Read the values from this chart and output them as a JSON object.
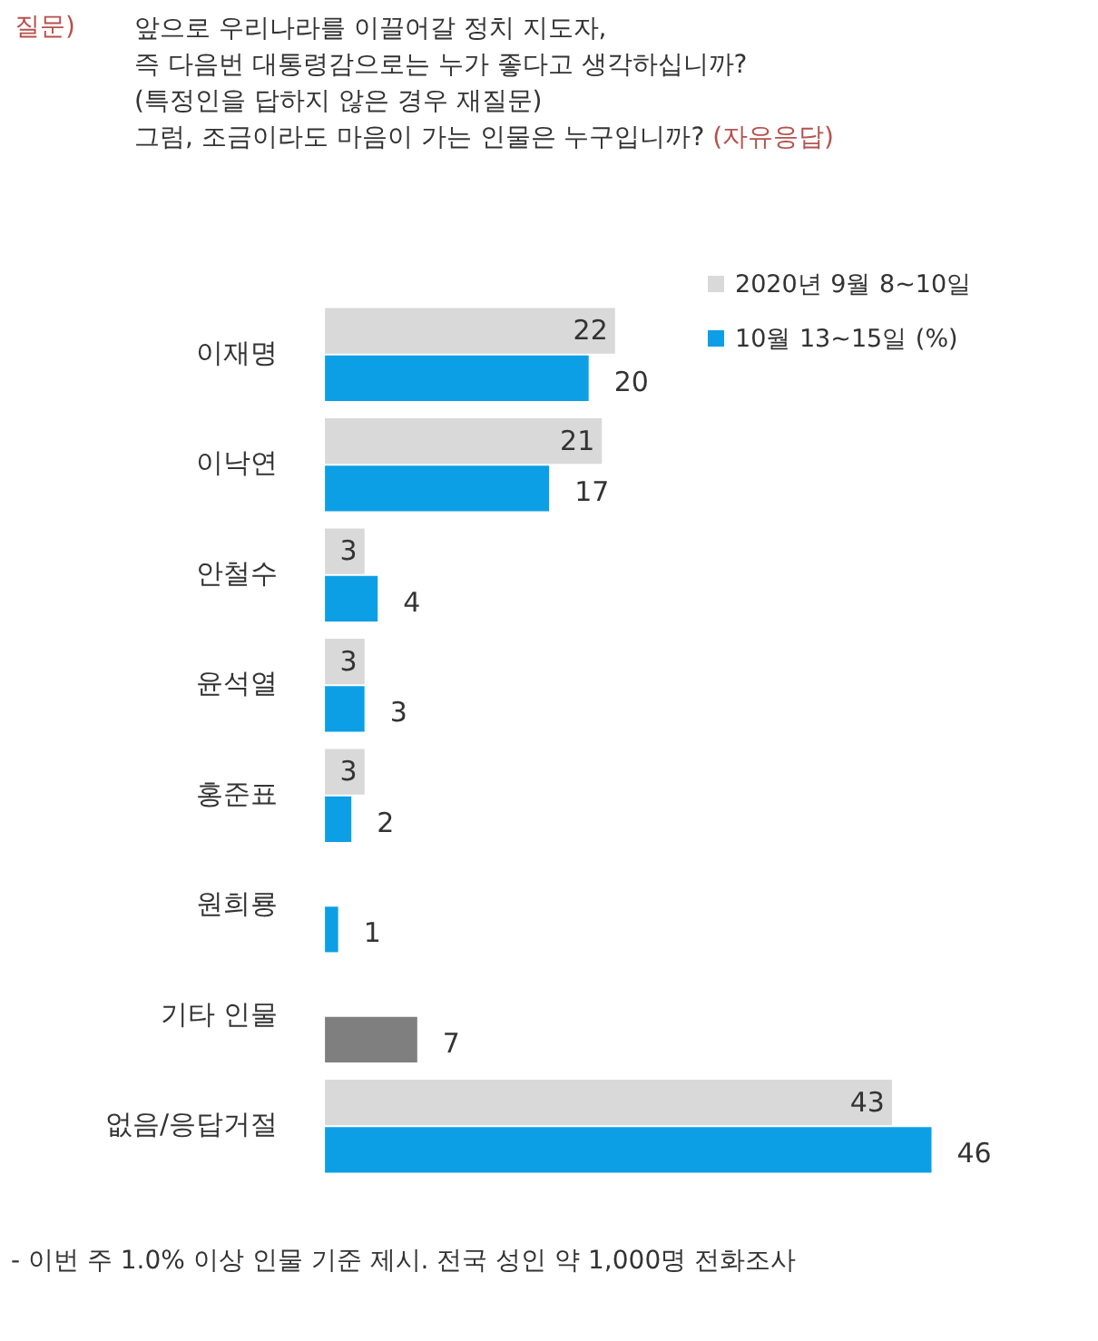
{
  "chart_data": {
    "type": "bar",
    "orientation": "horizontal",
    "title": "앞으로 우리나라를 이끌어갈 정치 지도자,\n즉 다음번 대통령감으로는 누가 좋다고 생각하십니까?\n(특정인을 답하지 않은 경우 재질문)\n그럼, 조금이라도 마음이 가는 인물은 누구입니까?",
    "subtitle": "(자유응답)",
    "categories": [
      "이재명",
      "이낙연",
      "안철수",
      "윤석열",
      "홍준표",
      "원희룡",
      "기타 인물",
      "없음/응답거절"
    ],
    "series": [
      {
        "name": "2020년 9월 8~10일",
        "color": "#d9d9d9",
        "values": [
          22,
          21,
          3,
          3,
          3,
          null,
          null,
          43
        ]
      },
      {
        "name": "10월 13~15일 (%)",
        "color": "#0d9fe6",
        "colors": [
          "#0d9fe6",
          "#0d9fe6",
          "#0d9fe6",
          "#0d9fe6",
          "#0d9fe6",
          "#0d9fe6",
          "#7f7f7f",
          "#0d9fe6"
        ],
        "values": [
          20,
          17,
          4,
          3,
          2,
          1,
          7,
          46
        ]
      }
    ],
    "data_labels": true,
    "legend": "top right",
    "tick_labels": "y",
    "annotations": [
      "질문)",
      "- 이번 주 1.0% 이상 인물 기준 제시. 전국 성인 약 1,000명 전화조사"
    ]
  }
}
